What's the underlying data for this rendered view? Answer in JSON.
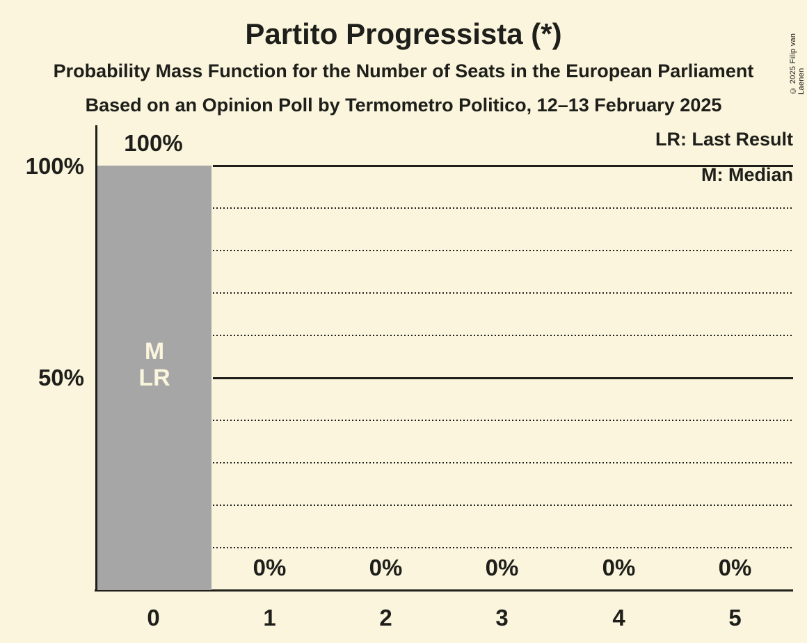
{
  "header": {
    "title": "Partito Progressista (*)",
    "subtitle": "Probability Mass Function for the Number of Seats in the European Parliament",
    "source_line": "Based on an Opinion Poll by Termometro Politico, 12–13 February 2025"
  },
  "legend": {
    "last_result": "LR: Last Result",
    "median": "M: Median"
  },
  "copyright": "© 2025 Filip van Laenen",
  "y_axis": {
    "tick_100": "100%",
    "tick_50": "50%"
  },
  "annotations": {
    "median": "M",
    "last_result": "LR"
  },
  "colors": {
    "background": "#FAF5DC",
    "bar": "#A6A6A6",
    "text": "#1E1E1A",
    "bar_text": "#FAF5DC"
  },
  "chart_data": {
    "type": "bar",
    "title": "Partito Progressista (*)",
    "subtitle": "Probability Mass Function for the Number of Seats in the European Parliament",
    "source_line": "Based on an Opinion Poll by Termometro Politico, 12–13 February 2025",
    "categories": [
      "0",
      "1",
      "2",
      "3",
      "4",
      "5"
    ],
    "values": [
      100,
      0,
      0,
      0,
      0,
      0
    ],
    "data_labels": [
      "100%",
      "0%",
      "0%",
      "0%",
      "0%",
      "0%"
    ],
    "ylim": [
      0,
      100
    ],
    "y_ticks_labeled": [
      "100%",
      "50%"
    ],
    "y_gridlines_solid_pct": [
      100,
      50
    ],
    "y_gridlines_dotted_pct": [
      90,
      80,
      70,
      60,
      40,
      30,
      20,
      10
    ],
    "grid": "horizontal-only",
    "legend_position": "top-right",
    "bar_annotations": [
      {
        "category": "0",
        "labels": [
          "M",
          "LR"
        ]
      }
    ]
  }
}
